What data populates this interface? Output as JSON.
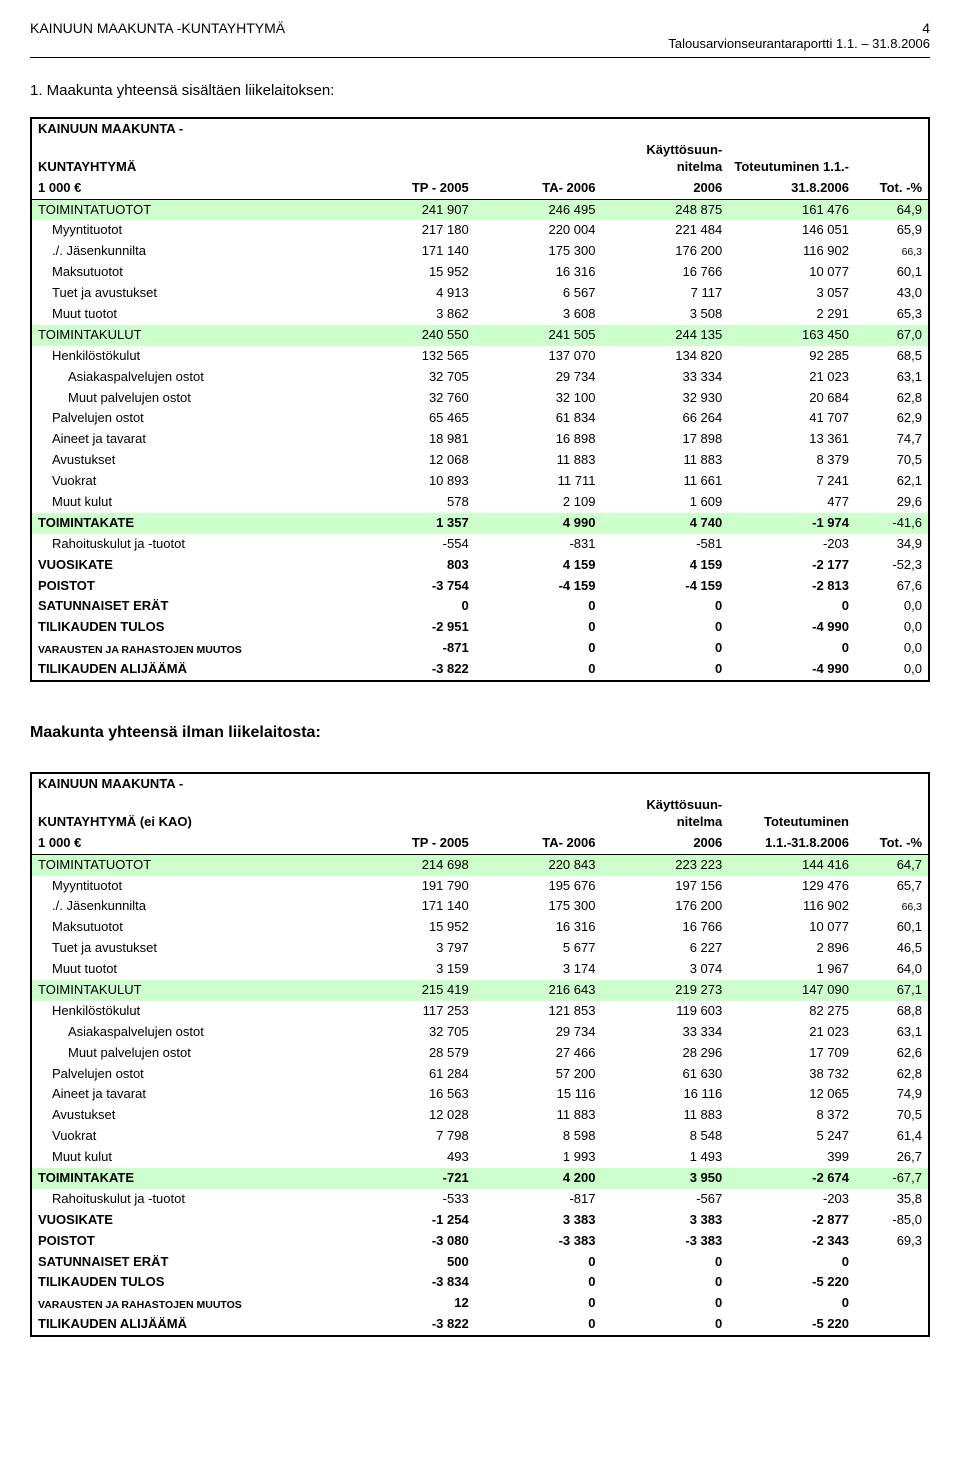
{
  "header": {
    "org": "KAINUUN MAAKUNTA -KUNTAYHTYMÄ",
    "page_number": "4",
    "report_title": "Talousarvionseurantaraportti 1.1. – 31.8.2006"
  },
  "sections": [
    {
      "title": "1. Maakunta yhteensä sisältäen liikelaitoksen:",
      "table_header": {
        "title_line1": "KAINUUN MAAKUNTA -",
        "title_line2": "KUNTAYHTYMÄ",
        "unit_line": "1 000 €",
        "col1": "TP - 2005",
        "col2": "TA- 2006",
        "col3_line1": "Käyttösuun-nitelma",
        "col3_line2": "2006",
        "col4_line1": "Toteutuminen 1.1.-",
        "col4_line2": "31.8.2006",
        "col5": "Tot. -%"
      },
      "rows": [
        {
          "label": "TOIMINTATUOTOT",
          "tp": "241 907",
          "ta": "246 495",
          "ks": "248 875",
          "tot": "161 476",
          "pct": "64,9",
          "hl": true,
          "bold": false,
          "indent": 0
        },
        {
          "label": "Myyntituotot",
          "tp": "217 180",
          "ta": "220 004",
          "ks": "221 484",
          "tot": "146 051",
          "pct": "65,9",
          "indent": 1
        },
        {
          "label": "./. Jäsenkunnilta",
          "tp": "171 140",
          "ta": "175 300",
          "ks": "176 200",
          "tot": "116 902",
          "pct": "",
          "small_pct": "66,3",
          "indent": 1
        },
        {
          "label": "Maksutuotot",
          "tp": "15 952",
          "ta": "16 316",
          "ks": "16 766",
          "tot": "10 077",
          "pct": "60,1",
          "indent": 1
        },
        {
          "label": "Tuet ja avustukset",
          "tp": "4 913",
          "ta": "6 567",
          "ks": "7 117",
          "tot": "3 057",
          "pct": "43,0",
          "indent": 1
        },
        {
          "label": "Muut tuotot",
          "tp": "3 862",
          "ta": "3 608",
          "ks": "3 508",
          "tot": "2 291",
          "pct": "65,3",
          "indent": 1
        },
        {
          "label": "TOIMINTAKULUT",
          "tp": "240 550",
          "ta": "241 505",
          "ks": "244 135",
          "tot": "163 450",
          "pct": "67,0",
          "hl": true,
          "indent": 0
        },
        {
          "label": "Henkilöstökulut",
          "tp": "132 565",
          "ta": "137 070",
          "ks": "134 820",
          "tot": "92 285",
          "pct": "68,5",
          "indent": 1
        },
        {
          "label": "Asiakaspalvelujen ostot",
          "tp": "32 705",
          "ta": "29 734",
          "ks": "33 334",
          "tot": "21 023",
          "pct": "63,1",
          "indent": 2
        },
        {
          "label": "Muut palvelujen ostot",
          "tp": "32 760",
          "ta": "32 100",
          "ks": "32 930",
          "tot": "20 684",
          "pct": "62,8",
          "indent": 2
        },
        {
          "label": "Palvelujen ostot",
          "tp": "65 465",
          "ta": "61 834",
          "ks": "66 264",
          "tot": "41 707",
          "pct": "62,9",
          "indent": 1
        },
        {
          "label": "Aineet ja tavarat",
          "tp": "18 981",
          "ta": "16 898",
          "ks": "17 898",
          "tot": "13 361",
          "pct": "74,7",
          "indent": 1
        },
        {
          "label": "Avustukset",
          "tp": "12 068",
          "ta": "11 883",
          "ks": "11 883",
          "tot": "8 379",
          "pct": "70,5",
          "indent": 1
        },
        {
          "label": "Vuokrat",
          "tp": "10 893",
          "ta": "11 711",
          "ks": "11 661",
          "tot": "7 241",
          "pct": "62,1",
          "indent": 1
        },
        {
          "label": "Muut kulut",
          "tp": "578",
          "ta": "2 109",
          "ks": "1 609",
          "tot": "477",
          "pct": "29,6",
          "indent": 1
        },
        {
          "label": "TOIMINTAKATE",
          "tp": "1 357",
          "ta": "4 990",
          "ks": "4 740",
          "tot": "-1 974",
          "pct": "-41,6",
          "hl": true,
          "bold": true,
          "indent": 0
        },
        {
          "label": "Rahoituskulut ja -tuotot",
          "tp": "-554",
          "ta": "-831",
          "ks": "-581",
          "tot": "-203",
          "pct": "34,9",
          "indent": 1
        },
        {
          "label": "VUOSIKATE",
          "tp": "803",
          "ta": "4 159",
          "ks": "4 159",
          "tot": "-2 177",
          "pct": "-52,3",
          "bold": true,
          "indent": 0
        },
        {
          "label": "POISTOT",
          "tp": "-3 754",
          "ta": "-4 159",
          "ks": "-4 159",
          "tot": "-2 813",
          "pct": "67,6",
          "bold": true,
          "indent": 0
        },
        {
          "label": "SATUNNAISET ERÄT",
          "tp": "0",
          "ta": "0",
          "ks": "0",
          "tot": "0",
          "pct": "0,0",
          "bold": true,
          "indent": 0
        },
        {
          "label": "TILIKAUDEN TULOS",
          "tp": "-2 951",
          "ta": "0",
          "ks": "0",
          "tot": "-4 990",
          "pct": "0,0",
          "bold": true,
          "indent": 0
        },
        {
          "label": "VARAUSTEN JA RAHASTOJEN MUUTOS",
          "tp": "-871",
          "ta": "0",
          "ks": "0",
          "tot": "0",
          "pct": "0,0",
          "bold": true,
          "small": true,
          "indent": 0
        },
        {
          "label": "TILIKAUDEN ALIJÄÄMÄ",
          "tp": "-3 822",
          "ta": "0",
          "ks": "0",
          "tot": "-4 990",
          "pct": "0,0",
          "bold": true,
          "indent": 0
        }
      ]
    },
    {
      "title": "Maakunta yhteensä ilman liikelaitosta:",
      "title_bold": true,
      "table_header": {
        "title_line1": "KAINUUN MAAKUNTA -",
        "title_line2": "KUNTAYHTYMÄ (ei KAO)",
        "unit_line": "1 000 €",
        "col1": "TP - 2005",
        "col2": "TA- 2006",
        "col3_line1": "Käyttösuun-nitelma",
        "col3_line2": "2006",
        "col4_line1": "Toteutuminen",
        "col4_line2": "1.1.-31.8.2006",
        "col5": "Tot. -%"
      },
      "rows": [
        {
          "label": "TOIMINTATUOTOT",
          "tp": "214 698",
          "ta": "220 843",
          "ks": "223 223",
          "tot": "144 416",
          "pct": "64,7",
          "hl": true,
          "indent": 0
        },
        {
          "label": "Myyntituotot",
          "tp": "191 790",
          "ta": "195 676",
          "ks": "197 156",
          "tot": "129 476",
          "pct": "65,7",
          "indent": 1
        },
        {
          "label": "./. Jäsenkunnilta",
          "tp": "171 140",
          "ta": "175 300",
          "ks": "176 200",
          "tot": "116 902",
          "pct": "",
          "small_pct": "66,3",
          "indent": 1
        },
        {
          "label": "Maksutuotot",
          "tp": "15 952",
          "ta": "16 316",
          "ks": "16 766",
          "tot": "10 077",
          "pct": "60,1",
          "indent": 1
        },
        {
          "label": "Tuet ja avustukset",
          "tp": "3 797",
          "ta": "5 677",
          "ks": "6 227",
          "tot": "2 896",
          "pct": "46,5",
          "indent": 1
        },
        {
          "label": "Muut tuotot",
          "tp": "3 159",
          "ta": "3 174",
          "ks": "3 074",
          "tot": "1 967",
          "pct": "64,0",
          "indent": 1
        },
        {
          "label": "TOIMINTAKULUT",
          "tp": "215 419",
          "ta": "216 643",
          "ks": "219 273",
          "tot": "147 090",
          "pct": "67,1",
          "hl": true,
          "indent": 0
        },
        {
          "label": "Henkilöstökulut",
          "tp": "117 253",
          "ta": "121 853",
          "ks": "119 603",
          "tot": "82 275",
          "pct": "68,8",
          "indent": 1
        },
        {
          "label": "Asiakaspalvelujen ostot",
          "tp": "32 705",
          "ta": "29 734",
          "ks": "33 334",
          "tot": "21 023",
          "pct": "63,1",
          "indent": 2
        },
        {
          "label": "Muut palvelujen ostot",
          "tp": "28 579",
          "ta": "27 466",
          "ks": "28 296",
          "tot": "17 709",
          "pct": "62,6",
          "indent": 2
        },
        {
          "label": "Palvelujen ostot",
          "tp": "61 284",
          "ta": "57 200",
          "ks": "61 630",
          "tot": "38 732",
          "pct": "62,8",
          "indent": 1
        },
        {
          "label": "Aineet ja tavarat",
          "tp": "16 563",
          "ta": "15 116",
          "ks": "16 116",
          "tot": "12 065",
          "pct": "74,9",
          "indent": 1
        },
        {
          "label": "Avustukset",
          "tp": "12 028",
          "ta": "11 883",
          "ks": "11 883",
          "tot": "8 372",
          "pct": "70,5",
          "indent": 1
        },
        {
          "label": "Vuokrat",
          "tp": "7 798",
          "ta": "8 598",
          "ks": "8 548",
          "tot": "5 247",
          "pct": "61,4",
          "indent": 1
        },
        {
          "label": "Muut kulut",
          "tp": "493",
          "ta": "1 993",
          "ks": "1 493",
          "tot": "399",
          "pct": "26,7",
          "indent": 1
        },
        {
          "label": "TOIMINTAKATE",
          "tp": "-721",
          "ta": "4 200",
          "ks": "3 950",
          "tot": "-2 674",
          "pct": "-67,7",
          "hl": true,
          "bold": true,
          "indent": 0
        },
        {
          "label": "Rahoituskulut ja -tuotot",
          "tp": "-533",
          "ta": "-817",
          "ks": "-567",
          "tot": "-203",
          "pct": "35,8",
          "indent": 1
        },
        {
          "label": "VUOSIKATE",
          "tp": "-1 254",
          "ta": "3 383",
          "ks": "3 383",
          "tot": "-2 877",
          "pct": "-85,0",
          "bold": true,
          "indent": 0
        },
        {
          "label": "POISTOT",
          "tp": "-3 080",
          "ta": "-3 383",
          "ks": "-3 383",
          "tot": "-2 343",
          "pct": "69,3",
          "bold": true,
          "indent": 0
        },
        {
          "label": "SATUNNAISET ERÄT",
          "tp": "500",
          "ta": "0",
          "ks": "0",
          "tot": "0",
          "pct": "",
          "bold": true,
          "indent": 0
        },
        {
          "label": "TILIKAUDEN TULOS",
          "tp": "-3 834",
          "ta": "0",
          "ks": "0",
          "tot": "-5 220",
          "pct": "",
          "bold": true,
          "indent": 0
        },
        {
          "label": "VARAUSTEN JA RAHASTOJEN MUUTOS",
          "tp": "12",
          "ta": "0",
          "ks": "0",
          "tot": "0",
          "pct": "",
          "bold": true,
          "small": true,
          "indent": 0
        },
        {
          "label": "TILIKAUDEN ALIJÄÄMÄ",
          "tp": "-3 822",
          "ta": "0",
          "ks": "0",
          "tot": "-5 220",
          "pct": "",
          "bold": true,
          "indent": 0
        }
      ]
    }
  ],
  "colors": {
    "highlight": "#ccffcc",
    "border": "#000000",
    "text": "#000000"
  }
}
